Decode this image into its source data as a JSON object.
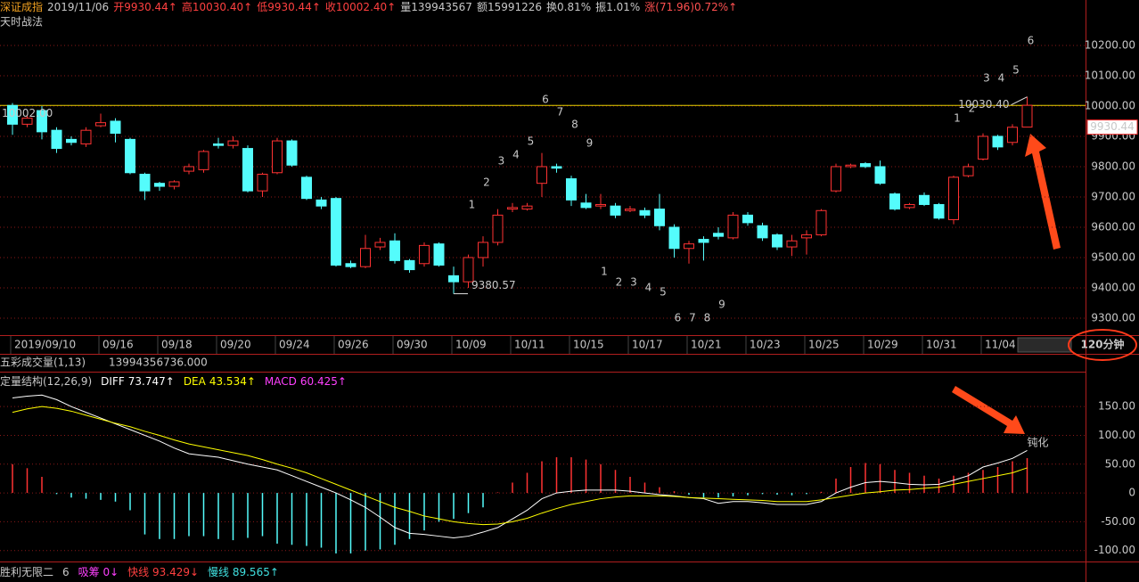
{
  "header": {
    "name": "深证成指",
    "fields": [
      {
        "text": "2019/11/06",
        "color": "#c8c8c8"
      },
      {
        "text": "开9930.44↑",
        "color": "#ff4040"
      },
      {
        "text": "高10030.40↑",
        "color": "#ff4040"
      },
      {
        "text": "低9930.44↑",
        "color": "#ff4040"
      },
      {
        "text": "收10002.40↑",
        "color": "#ff4040"
      },
      {
        "text": "量139943567",
        "color": "#c8c8c8"
      },
      {
        "text": "额15991226",
        "color": "#c8c8c8"
      },
      {
        "text": "换0.81%",
        "color": "#c8c8c8"
      },
      {
        "text": "振1.01%",
        "color": "#c8c8c8"
      },
      {
        "text": "涨(71.96)0.72%↑",
        "color": "#ff5050"
      }
    ]
  },
  "subtitle": "天时战法",
  "volume_indicator": {
    "title": "五彩成交量(1,13)",
    "value": "13994356736.000"
  },
  "footer": [
    {
      "text": "胜利无限二",
      "color": "#c8c8c8"
    },
    {
      "text": "6",
      "color": "#c8c8c8"
    },
    {
      "text": "吸筹 0↓",
      "color": "#ff40ff"
    },
    {
      "text": "快线 93.429↓",
      "color": "#ff4040"
    },
    {
      "text": "慢线 89.565↑",
      "color": "#40e0e0"
    }
  ],
  "chart_data": [
    {
      "type": "candlestick",
      "period_label": "120分钟",
      "categories": [
        "2019/09/10",
        null,
        null,
        null,
        null,
        null,
        "09/16",
        null,
        null,
        null,
        "09/18",
        null,
        null,
        null,
        "09/20",
        null,
        null,
        null,
        "09/24",
        null,
        null,
        null,
        "09/26",
        null,
        null,
        null,
        "09/30",
        null,
        null,
        null,
        "10/09",
        null,
        null,
        null,
        "10/11",
        null,
        null,
        null,
        "10/15",
        null,
        null,
        null,
        "10/17",
        null,
        null,
        null,
        "10/21",
        null,
        null,
        null,
        "10/23",
        null,
        null,
        null,
        "10/25",
        null,
        null,
        null,
        "10/29",
        null,
        null,
        null,
        "10/31",
        null,
        null,
        null,
        "11/04",
        null,
        null,
        null
      ],
      "open": [
        10002,
        9940,
        9985,
        9920,
        9890,
        9875,
        9935,
        9950,
        9890,
        9775,
        9745,
        9735,
        9785,
        9790,
        9875,
        9870,
        9860,
        9720,
        9780,
        9885,
        9765,
        9690,
        9695,
        9480,
        9470,
        9535,
        9555,
        9490,
        9480,
        9545,
        9440,
        9420,
        9500,
        9550,
        9660,
        9660,
        9745,
        9800,
        9760,
        9680,
        9670,
        9670,
        9655,
        9655,
        9660,
        9600,
        9530,
        9560,
        9580,
        9565,
        9640,
        9605,
        9575,
        9535,
        9565,
        9575,
        9720,
        9800,
        9810,
        9800,
        9710,
        9665,
        9705,
        9675,
        9625,
        9770,
        9825,
        9900,
        9880,
        9930.44
      ],
      "high": [
        10010,
        9970,
        10000,
        9930,
        9900,
        9930,
        9975,
        9960,
        9895,
        9780,
        9750,
        9755,
        9810,
        9855,
        9895,
        9900,
        9870,
        9780,
        9895,
        9890,
        9770,
        9700,
        9700,
        9490,
        9575,
        9565,
        9580,
        9495,
        9550,
        9550,
        9470,
        9510,
        9570,
        9660,
        9680,
        9680,
        9845,
        9810,
        9770,
        9710,
        9710,
        9680,
        9670,
        9665,
        9710,
        9610,
        9555,
        9570,
        9600,
        9650,
        9650,
        9615,
        9580,
        9575,
        9590,
        9660,
        9810,
        9810,
        9815,
        9820,
        9715,
        9680,
        9715,
        9680,
        9770,
        9810,
        9910,
        9905,
        9940,
        10030.4
      ],
      "low": [
        9905,
        9930,
        9890,
        9845,
        9870,
        9865,
        9930,
        9880,
        9775,
        9690,
        9720,
        9725,
        9775,
        9780,
        9860,
        9860,
        9715,
        9700,
        9775,
        9800,
        9690,
        9660,
        9470,
        9465,
        9465,
        9525,
        9480,
        9450,
        9470,
        9470,
        9380.57,
        9400,
        9470,
        9540,
        9650,
        9655,
        9700,
        9780,
        9670,
        9660,
        9660,
        9630,
        9650,
        9630,
        9590,
        9500,
        9480,
        9490,
        9560,
        9560,
        9605,
        9555,
        9525,
        9505,
        9510,
        9570,
        9715,
        9795,
        9795,
        9740,
        9655,
        9660,
        9670,
        9625,
        9610,
        9765,
        9820,
        9855,
        9870,
        9930.44
      ],
      "close": [
        9940,
        9960,
        9915,
        9860,
        9880,
        9920,
        9945,
        9910,
        9780,
        9720,
        9735,
        9750,
        9800,
        9850,
        9870,
        9885,
        9720,
        9775,
        9885,
        9805,
        9695,
        9670,
        9475,
        9470,
        9530,
        9550,
        9490,
        9460,
        9540,
        9475,
        9420,
        9500,
        9550,
        9640,
        9665,
        9670,
        9800,
        9795,
        9690,
        9665,
        9675,
        9640,
        9660,
        9640,
        9605,
        9530,
        9545,
        9550,
        9570,
        9640,
        9615,
        9565,
        9535,
        9555,
        9575,
        9655,
        9800,
        9805,
        9800,
        9745,
        9660,
        9675,
        9675,
        9630,
        9765,
        9800,
        9900,
        9865,
        9930,
        10002.4
      ],
      "up_color": "#ff3232",
      "down_color": "#54fcfc",
      "ylim": [
        9244,
        10297
      ],
      "yticks": [
        {
          "value": 9300,
          "label": "9300.00"
        },
        {
          "value": 9400,
          "label": "9400.00"
        },
        {
          "value": 9500,
          "label": "9500.00"
        },
        {
          "value": 9600,
          "label": "9600.00"
        },
        {
          "value": 9700,
          "label": "9700.00"
        },
        {
          "value": 9800,
          "label": "9800.00"
        },
        {
          "value": 9900,
          "label": "9900.00"
        },
        {
          "value": 10000,
          "label": "10000.00"
        },
        {
          "value": 10100,
          "label": "10100.00"
        },
        {
          "value": 10200,
          "label": "10200.00"
        }
      ],
      "grid": true,
      "reference_line": {
        "value": 10002,
        "label": "10002.00",
        "color": "#e8d000"
      },
      "last_price_label": {
        "value": 9930.44,
        "label": "9930.44"
      },
      "extreme_labels": [
        {
          "index": 69,
          "kind": "high",
          "label": "10030.40"
        },
        {
          "index": 30,
          "kind": "low",
          "label": "9380.57"
        }
      ],
      "annotations": [
        {
          "count": 1,
          "index": 31,
          "price": 9674,
          "color": "#ff40ff"
        },
        {
          "count": 2,
          "index": 32,
          "price": 9747,
          "color": "#ff40ff"
        },
        {
          "count": 3,
          "index": 33,
          "price": 9818,
          "color": "#ff40ff"
        },
        {
          "count": 4,
          "index": 34,
          "price": 9838,
          "color": "#ff40ff"
        },
        {
          "count": 5,
          "index": 35,
          "price": 9882,
          "color": "#ff40ff"
        },
        {
          "count": 6,
          "index": 36,
          "price": 10021,
          "color": "#ff40ff"
        },
        {
          "count": 7,
          "index": 37,
          "price": 9979,
          "color": "#ff40ff"
        },
        {
          "count": 8,
          "index": 38,
          "price": 9938,
          "color": "#ff40ff"
        },
        {
          "count": 9,
          "index": 39,
          "price": 9876,
          "color": "#30ff30"
        },
        {
          "count": 1,
          "index": 40,
          "price": 9453,
          "color": "#ff40ff"
        },
        {
          "count": 2,
          "index": 41,
          "price": 9418,
          "color": "#ff40ff"
        },
        {
          "count": 3,
          "index": 42,
          "price": 9418,
          "color": "#ff40ff"
        },
        {
          "count": 4,
          "index": 43,
          "price": 9400,
          "color": "#ff40ff"
        },
        {
          "count": 5,
          "index": 44,
          "price": 9385,
          "color": "#ff40ff"
        },
        {
          "count": 6,
          "index": 45,
          "price": 9300,
          "color": "#ff40ff"
        },
        {
          "count": 7,
          "index": 46,
          "price": 9300,
          "color": "#ff40ff"
        },
        {
          "count": 8,
          "index": 47,
          "price": 9300,
          "color": "#ff40ff"
        },
        {
          "count": 9,
          "index": 48,
          "price": 9344,
          "color": "#30ff30"
        },
        {
          "count": 1,
          "index": 64,
          "price": 9959,
          "color": "#ff40ff"
        },
        {
          "count": 2,
          "index": 65,
          "price": 9991,
          "color": "#ff40ff"
        },
        {
          "count": 3,
          "index": 66,
          "price": 10091,
          "color": "#ff40ff"
        },
        {
          "count": 4,
          "index": 67,
          "price": 10091,
          "color": "#ff40ff"
        },
        {
          "count": 5,
          "index": 68,
          "price": 10118,
          "color": "#ff40ff"
        },
        {
          "count": 6,
          "index": 69,
          "price": 10215,
          "color": "#ff40ff"
        }
      ]
    },
    {
      "type": "macd",
      "title": "定量结构(12,26,9)",
      "annotation": "钝化",
      "ylim": [
        -119,
        175
      ],
      "yticks": [
        {
          "value": -100,
          "label": "-100.00"
        },
        {
          "value": -50,
          "label": "-50.00"
        },
        0,
        {
          "value": 50,
          "label": "50.00"
        },
        {
          "value": 100,
          "label": "100.00"
        },
        {
          "value": 150,
          "label": "150.00"
        }
      ],
      "grid": true,
      "bar_colors": {
        "up": "#ff3232",
        "down": "#54fcfc"
      },
      "series": [
        {
          "name": "DIFF",
          "kind": "line",
          "color": "#ffffff",
          "value_label": "73.747↑",
          "values": [
            165,
            168,
            170,
            162,
            150,
            140,
            130,
            120,
            110,
            100,
            90,
            78,
            68,
            65,
            62,
            56,
            50,
            45,
            40,
            30,
            20,
            10,
            0,
            -12,
            -25,
            -42,
            -60,
            -70,
            -72,
            -75,
            -78,
            -75,
            -68,
            -60,
            -45,
            -30,
            -10,
            0,
            3,
            5,
            5,
            5,
            3,
            0,
            -3,
            -5,
            -8,
            -10,
            -18,
            -15,
            -15,
            -17,
            -20,
            -20,
            -20,
            -15,
            0,
            10,
            18,
            20,
            18,
            15,
            14,
            15,
            22,
            30,
            45,
            52,
            60,
            73.747
          ]
        },
        {
          "name": "DEA",
          "kind": "line",
          "color": "#ffff00",
          "value_label": "43.534↑",
          "values": [
            140,
            146,
            150,
            147,
            142,
            135,
            128,
            121,
            115,
            107,
            100,
            92,
            85,
            80,
            75,
            70,
            65,
            58,
            50,
            43,
            35,
            25,
            15,
            5,
            -5,
            -15,
            -25,
            -32,
            -40,
            -45,
            -50,
            -53,
            -55,
            -54,
            -50,
            -44,
            -35,
            -27,
            -20,
            -15,
            -10,
            -7,
            -5,
            -5,
            -5,
            -6,
            -8,
            -9,
            -10,
            -11,
            -12,
            -13,
            -15,
            -15,
            -15,
            -12,
            -8,
            -4,
            0,
            2,
            5,
            6,
            8,
            10,
            15,
            20,
            25,
            30,
            35,
            43.534
          ]
        },
        {
          "name": "MACD",
          "kind": "bar",
          "color": "#ff40ff",
          "value_label": "60.425↑",
          "values": [
            50,
            43,
            28,
            -2,
            -8,
            -10,
            -12,
            -15,
            -30,
            -72,
            -80,
            -80,
            -75,
            -75,
            -80,
            -82,
            -78,
            -75,
            -88,
            -90,
            -92,
            -95,
            -105,
            -105,
            -100,
            -98,
            -90,
            -80,
            -65,
            -50,
            -45,
            -35,
            -25,
            1,
            18,
            35,
            55,
            62,
            62,
            58,
            50,
            40,
            28,
            18,
            10,
            3,
            -3,
            -8,
            -8,
            -6,
            -4,
            -2,
            -3,
            -4,
            -2,
            2,
            25,
            45,
            52,
            50,
            40,
            35,
            30,
            25,
            30,
            35,
            40,
            45,
            55,
            60.425
          ]
        }
      ]
    }
  ]
}
